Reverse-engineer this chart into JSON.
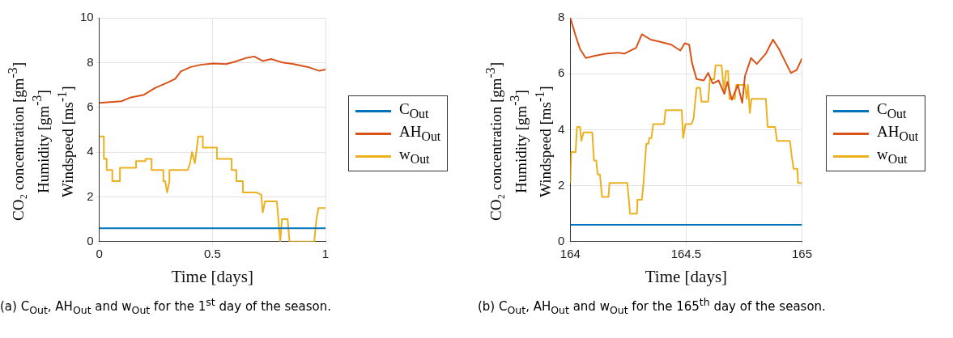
{
  "chart_data": [
    {
      "type": "line",
      "xlabel": "Time [days]",
      "ylabel": "CO₂ concentration [gm$^{-3}$]\nHumidity [gm$^{-3}$]\nWindspeed [ms$^{-1}$]",
      "xlim": [
        0,
        1
      ],
      "xticks": [
        0,
        0.5,
        1
      ],
      "ylim": [
        0,
        10
      ],
      "yticks": [
        0,
        2,
        4,
        6,
        8,
        10
      ],
      "grid": true,
      "legend": "right",
      "marker": "none",
      "annotations": [
        "(a) C$_{Out}$, AH$_{Out}$ and w$_{Out}$ for the 1$^{st}$ day of the season."
      ],
      "series": [
        {
          "name": "C$_{Out}$",
          "color": "#0072bd",
          "x": [
            0,
            0.25,
            0.5,
            0.75,
            1
          ],
          "values": [
            0.6,
            0.6,
            0.6,
            0.6,
            0.6
          ]
        },
        {
          "name": "AH$_{Out}$",
          "color": "#d95319",
          "x": [
            0,
            0.0975,
            0.135,
            0.1975,
            0.2475,
            0.2975,
            0.335,
            0.36,
            0.404,
            0.4475,
            0.504,
            0.56,
            0.5975,
            0.6475,
            0.685,
            0.7225,
            0.76,
            0.81,
            0.86,
            0.9225,
            0.9725,
            1
          ],
          "values": [
            6.2,
            6.27,
            6.43,
            6.56,
            6.87,
            7.09,
            7.27,
            7.6,
            7.8,
            7.9,
            7.96,
            7.93,
            8.03,
            8.2,
            8.27,
            8.07,
            8.16,
            8.0,
            7.93,
            7.8,
            7.63,
            7.69
          ]
        },
        {
          "name": "w$_{Out}$",
          "color": "#edb120",
          "x": [
            0,
            0.02,
            0.02,
            0.0325,
            0.0325,
            0.0575,
            0.0575,
            0.091,
            0.091,
            0.1625,
            0.1625,
            0.204,
            0.204,
            0.231,
            0.231,
            0.283,
            0.283,
            0.291,
            0.3,
            0.31,
            0.31,
            0.391,
            0.401,
            0.41,
            0.4225,
            0.4375,
            0.4575,
            0.4575,
            0.52,
            0.52,
            0.585,
            0.585,
            0.606,
            0.606,
            0.635,
            0.635,
            0.691,
            0.716,
            0.7225,
            0.7325,
            0.785,
            0.8,
            0.8075,
            0.8325,
            0.841,
            0.95,
            0.96,
            0.969,
            1
          ],
          "values": [
            4.7,
            4.7,
            3.7,
            3.7,
            3.2,
            3.2,
            2.7,
            2.7,
            3.3,
            3.3,
            3.6,
            3.6,
            3.7,
            3.7,
            3.2,
            3.2,
            2.7,
            2.7,
            2.2,
            2.7,
            3.2,
            3.2,
            3.5,
            4.0,
            3.5,
            4.7,
            4.7,
            4.2,
            4.2,
            3.7,
            3.7,
            3.2,
            3.2,
            2.7,
            2.7,
            2.2,
            2.2,
            2.1,
            1.3,
            1.8,
            1.8,
            0,
            1.0,
            1.0,
            0,
            0,
            1.0,
            1.5,
            1.5
          ]
        }
      ]
    },
    {
      "type": "line",
      "xlabel": "Time [days]",
      "ylabel": "CO₂ concentration [gm$^{-3}$]\nHumidity [gm$^{-3}$]\nWindspeed [ms$^{-1}$]",
      "xlim": [
        164,
        165
      ],
      "xticks": [
        164,
        164.5,
        165
      ],
      "ylim": [
        0,
        8
      ],
      "yticks": [
        0,
        2,
        4,
        6,
        8
      ],
      "grid": true,
      "legend": "right",
      "marker": "none",
      "annotations": [
        "(b) C$_{Out}$, AH$_{Out}$ and w$_{Out}$ for the 165$^{th}$ day of the season."
      ],
      "series": [
        {
          "name": "C$_{Out}$",
          "color": "#0072bd",
          "x": [
            164,
            164.25,
            164.5,
            164.75,
            165
          ],
          "values": [
            0.6,
            0.6,
            0.6,
            0.6,
            0.6
          ]
        },
        {
          "name": "AH$_{Out}$",
          "color": "#d95319",
          "x": [
            164,
            164.023,
            164.042,
            164.067,
            164.106,
            164.156,
            164.207,
            164.233,
            164.284,
            164.309,
            164.347,
            164.385,
            164.436,
            164.475,
            164.494,
            164.513,
            164.525,
            164.545,
            164.576,
            164.595,
            164.615,
            164.64,
            164.665,
            164.678,
            164.697,
            164.723,
            164.742,
            164.754,
            164.78,
            164.805,
            164.844,
            164.875,
            164.901,
            164.92,
            164.952,
            164.977,
            165
          ],
          "values": [
            8.0,
            7.36,
            6.88,
            6.56,
            6.64,
            6.72,
            6.75,
            6.72,
            6.93,
            7.41,
            7.22,
            7.15,
            7.04,
            6.83,
            7.09,
            7.04,
            6.4,
            5.81,
            5.76,
            6.03,
            5.65,
            5.76,
            5.28,
            5.71,
            5.07,
            5.6,
            4.96,
            5.92,
            6.56,
            6.35,
            6.72,
            7.22,
            6.88,
            6.56,
            6.03,
            6.13,
            6.54
          ]
        },
        {
          "name": "w$_{Out}$",
          "color": "#edb120",
          "x": [
            164,
            164.004,
            164.023,
            164.029,
            164.042,
            164.048,
            164.057,
            164.095,
            164.102,
            164.112,
            164.118,
            164.128,
            164.137,
            164.165,
            164.169,
            164.246,
            164.258,
            164.288,
            164.29,
            164.309,
            164.316,
            164.328,
            164.337,
            164.341,
            164.35,
            164.358,
            164.405,
            164.411,
            164.481,
            164.487,
            164.497,
            164.523,
            164.532,
            164.545,
            164.56,
            164.566,
            164.595,
            164.602,
            164.621,
            164.627,
            164.653,
            164.663,
            164.672,
            164.681,
            164.687,
            164.71,
            164.716,
            164.754,
            164.761,
            164.767,
            164.775,
            164.782,
            164.844,
            164.852,
            164.884,
            164.892,
            164.948,
            164.955,
            164.964,
            164.98,
            164.983,
            165
          ],
          "values": [
            2.1,
            3.2,
            3.2,
            4.1,
            4.1,
            3.6,
            3.9,
            3.9,
            2.9,
            2.9,
            2.4,
            2.4,
            1.6,
            1.6,
            2.1,
            2.1,
            1.0,
            1.0,
            1.5,
            1.5,
            2.1,
            3.5,
            3.5,
            3.7,
            3.7,
            4.2,
            4.2,
            4.7,
            4.7,
            3.7,
            4.2,
            4.2,
            4.4,
            5.5,
            5.5,
            5.0,
            5.0,
            5.8,
            5.8,
            6.3,
            6.3,
            5.4,
            6.1,
            6.1,
            5.1,
            5.1,
            5.6,
            5.6,
            5.1,
            5.6,
            4.6,
            5.1,
            5.1,
            4.1,
            4.1,
            3.6,
            3.6,
            3.1,
            2.6,
            2.6,
            2.1,
            2.1
          ]
        }
      ]
    }
  ]
}
